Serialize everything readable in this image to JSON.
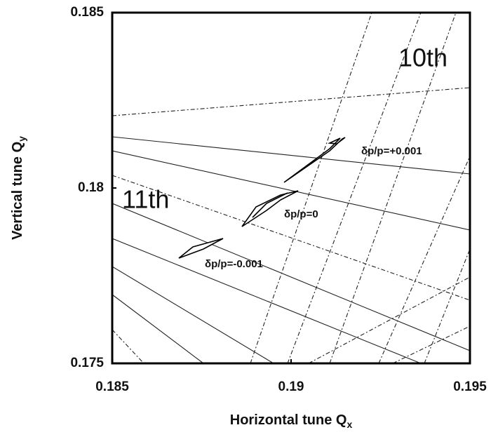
{
  "chart_data": {
    "type": "tune-diagram",
    "xlabel": {
      "text": "Horizontal tune Q",
      "sub": "x"
    },
    "ylabel": {
      "text": "Vertical tune Q",
      "sub": "y"
    },
    "xlim": [
      0.185,
      0.195
    ],
    "xticks": [
      0.185,
      0.19,
      0.195
    ],
    "ylim": [
      0.175,
      0.185
    ],
    "yticks": [
      0.175,
      0.18,
      0.185
    ],
    "annotations": [
      "10th",
      "11th",
      "δp/p=+0.001",
      "δp/p=0",
      "δp/p=-0.001"
    ]
  }
}
